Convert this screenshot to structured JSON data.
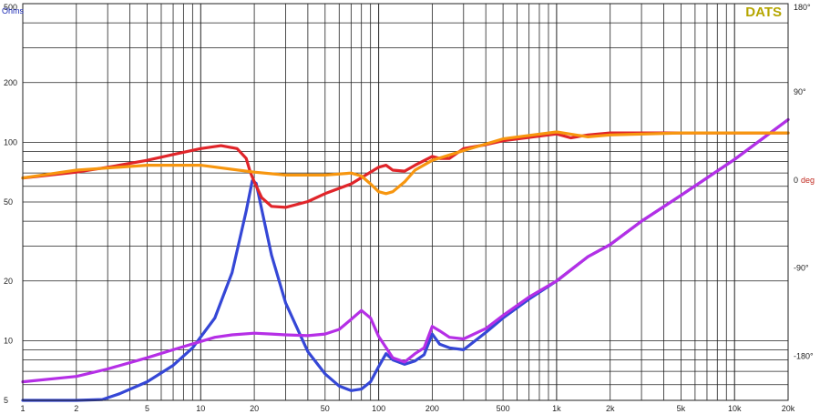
{
  "chart_data": {
    "type": "line",
    "brand": "DATS",
    "x_scale": "log",
    "xlim": [
      1,
      20000
    ],
    "x_ticks": [
      1,
      2,
      5,
      10,
      20,
      50,
      100,
      200,
      500,
      1000,
      2000,
      5000,
      10000,
      20000
    ],
    "x_tick_labels": [
      "1",
      "2",
      "5",
      "10",
      "20",
      "50",
      "100",
      "200",
      "500",
      "1k",
      "2k",
      "5k",
      "10k",
      "20k"
    ],
    "left_axis": {
      "unit": "Ohms",
      "scale": "log",
      "ylim": [
        5,
        500
      ],
      "ticks": [
        5,
        10,
        20,
        50,
        100,
        200,
        500
      ],
      "tick_labels": [
        "5",
        "10",
        "20",
        "50",
        "100",
        "200",
        "500"
      ]
    },
    "right_axis": {
      "unit": "deg",
      "scale": "linear",
      "ylim": [
        -225,
        180
      ],
      "ticks": [
        180,
        90,
        0,
        -90,
        -180
      ],
      "tick_labels": [
        "180°",
        "90°",
        "0",
        "-90°",
        "-180°"
      ]
    },
    "grid": true,
    "series": [
      {
        "axis": "left",
        "color": "#3547d6",
        "x": [
          1,
          2,
          2.8,
          3.5,
          5,
          7,
          9,
          12,
          15,
          18,
          19.5,
          20.5,
          22,
          25,
          30,
          40,
          50,
          60,
          70,
          80,
          90,
          100,
          110,
          120,
          140,
          160,
          180,
          200,
          220,
          250,
          300,
          400,
          500,
          700,
          1000,
          1500,
          2000,
          3000,
          5000,
          10000,
          20000
        ],
        "y": [
          5.0,
          5.0,
          5.05,
          5.4,
          6.2,
          7.5,
          9.2,
          13,
          22,
          45,
          64,
          62,
          46,
          27,
          15.5,
          8.8,
          6.8,
          5.9,
          5.6,
          5.7,
          6.2,
          7.4,
          8.6,
          8.0,
          7.6,
          7.9,
          8.5,
          10.8,
          9.6,
          9.2,
          9.0,
          11.0,
          13.0,
          16.2,
          20.0,
          26.5,
          30.5,
          40,
          54,
          82,
          130
        ]
      },
      {
        "axis": "left",
        "color": "#b52fe6",
        "x": [
          1,
          2,
          3,
          5,
          7,
          10,
          12,
          15,
          20,
          25,
          30,
          40,
          50,
          60,
          70,
          80,
          90,
          100,
          120,
          140,
          160,
          180,
          200,
          220,
          250,
          300,
          400,
          500,
          700,
          1000,
          1500,
          2000,
          3000,
          5000,
          10000,
          20000
        ],
        "y": [
          6.2,
          6.6,
          7.2,
          8.2,
          9.0,
          9.9,
          10.4,
          10.7,
          10.9,
          10.8,
          10.7,
          10.6,
          10.8,
          11.4,
          12.8,
          14.2,
          13.0,
          10.5,
          8.2,
          7.8,
          8.6,
          9.2,
          11.8,
          11.2,
          10.4,
          10.2,
          11.5,
          13.4,
          16.6,
          20.0,
          26.5,
          30.5,
          40,
          54,
          82,
          130
        ]
      },
      {
        "axis": "right",
        "color": "#e0252a",
        "x": [
          1,
          2,
          3,
          5,
          7,
          10,
          13,
          16,
          18,
          19,
          20,
          22,
          25,
          30,
          40,
          50,
          70,
          100,
          110,
          120,
          140,
          160,
          200,
          220,
          250,
          300,
          400,
          500,
          1000,
          1200,
          1500,
          2000,
          5000,
          10000,
          20000
        ],
        "y": [
          2,
          8,
          13,
          20,
          26,
          32,
          35,
          32,
          22,
          8,
          -2,
          -18,
          -27,
          -28,
          -22,
          -14,
          -4,
          13,
          15,
          10,
          9,
          15,
          24,
          22,
          22,
          32,
          36,
          40,
          47,
          43,
          46,
          48,
          48,
          48,
          48
        ]
      },
      {
        "axis": "right",
        "color": "#f7960f",
        "x": [
          1,
          2,
          5,
          10,
          20,
          30,
          50,
          70,
          80,
          90,
          100,
          110,
          120,
          140,
          160,
          200,
          300,
          500,
          1000,
          1500,
          2000,
          5000,
          10000,
          20000
        ],
        "y": [
          2,
          10,
          15,
          15,
          8,
          5,
          5,
          7,
          4,
          -4,
          -12,
          -14,
          -12,
          -2,
          10,
          20,
          30,
          42,
          49,
          44,
          46,
          48,
          48,
          48
        ]
      }
    ]
  }
}
